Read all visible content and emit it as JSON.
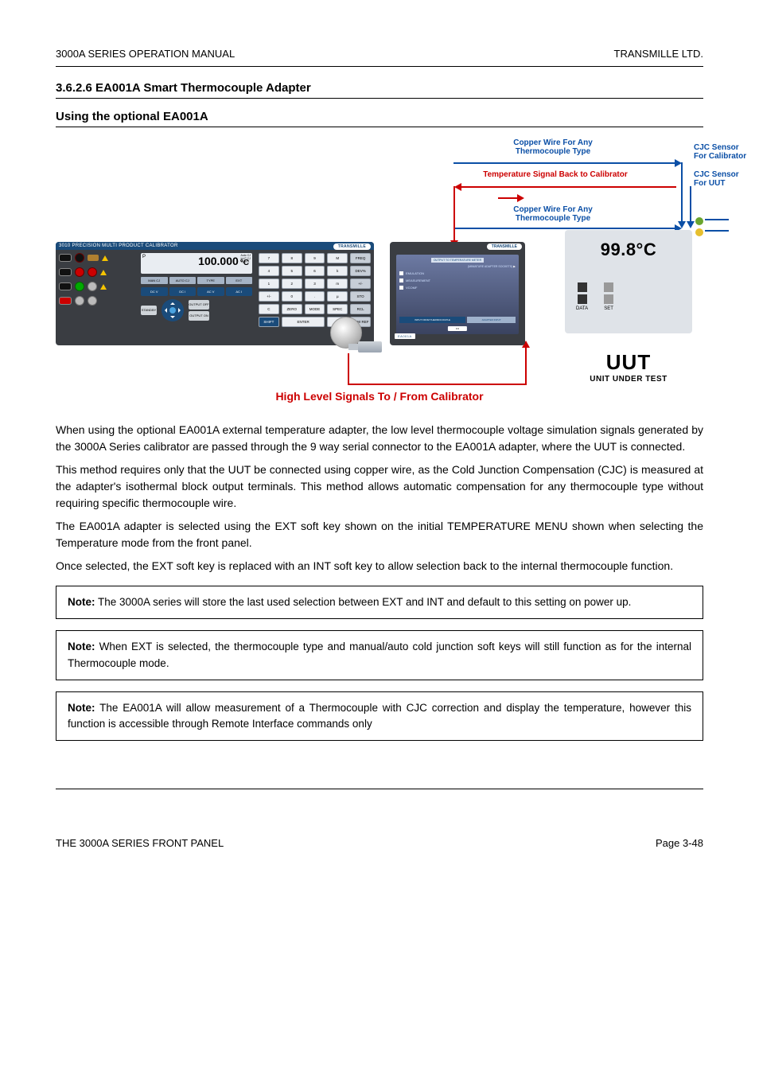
{
  "header": {
    "left": "3000A SERIES OPERATION MANUAL",
    "right": "TRANSMILLE LTD."
  },
  "section": {
    "number": "3.6.2.6",
    "title": "EA001A Smart Thermocouple Adapter",
    "subtitle": "Using the optional EA001A"
  },
  "figure": {
    "calibrator": {
      "model_bar": "3010 PRECISION MULTI PRODUCT CALIBRATOR",
      "brand_oval": "TRANSMILLE",
      "lcd_value": "100.000",
      "lcd_unit": "°C",
      "lcd_sub_lines": [
        "Auto CJ",
        "Int P CJ",
        "Type K"
      ],
      "lcd_sidechar": "P",
      "softkeys": [
        "MAN CJ",
        "AUTO CJ",
        "TYPE",
        "EXT"
      ],
      "hardkeys": [
        "DC V",
        "DC I",
        "AC V",
        "AC I"
      ],
      "left_btn": "STANDBY",
      "dpad_left_label": "OUTPUT OFF",
      "dpad_right_label": "OUTPUT ON",
      "keypad": [
        [
          "7",
          "8",
          "9",
          "M",
          "FREQ"
        ],
        [
          "4",
          "5",
          "6",
          "k",
          "DEV%"
        ],
        [
          "1",
          "2",
          "3",
          "m",
          "+/-"
        ],
        [
          "+/-",
          "0",
          ".",
          "µ",
          "STO"
        ],
        [
          "C",
          "ZERO",
          "MODE",
          "SPEC",
          "RCL"
        ],
        [
          "SHIFT",
          "ENTER",
          "",
          "Hz",
          "NEW REF"
        ]
      ],
      "keypad_blue_last_row_first": "SHIFT"
    },
    "pod": {
      "brand_oval": "TRANSMILLE",
      "title": "OUTPUT TO TEMPERATURE METER",
      "desc_label": "(MINIATURE ADAPTER SOCKETS)",
      "options": [
        "EMULATION",
        "MEASUREMENT",
        "VCOMF"
      ],
      "footer_badge": "EA001A",
      "bottom_strip_left": "INPUT FROM THERMOCOUPLE",
      "bottom_strip_right": "ADAPTER INPUT",
      "foot_btn": "0   0"
    },
    "uut": {
      "display": "99.8°C",
      "btn_labels": [
        "DATA",
        "SET"
      ]
    },
    "annotations": {
      "copper_top": "Copper Wire For Any\nThermocouple Type",
      "copper_bottom": "Copper Wire For Any\nThermocouple Type",
      "temp_signal": "Temperature Signal Back to Calibrator",
      "cjc_cal": "CJC Sensor\nFor Calibrator",
      "cjc_uut": "CJC Sensor\nFor UUT",
      "colors": {
        "blue": "#0b4fa6",
        "red": "#c00000"
      },
      "cjc_led_colors": {
        "green": "#6aa52e",
        "yellow": "#e6bf2e"
      }
    },
    "uut_label": {
      "big": "UUT",
      "small": "UNIT UNDER TEST"
    },
    "caption": "High Level Signals To / From Calibrator"
  },
  "paragraphs": {
    "intro": "When using the optional EA001A external temperature adapter, the low level thermocouple voltage simulation signals generated by the 3000A Series calibrator are passed through the 9 way serial connector to the EA001A adapter, where the UUT is connected.",
    "p2": "This method requires only that the UUT be connected using copper wire, as the Cold Junction Compensation (CJC) is measured at the adapter's isothermal block output terminals. This method allows automatic compensation for any thermocouple type without requiring specific thermocouple wire.",
    "p3": "The EA001A adapter is selected using the EXT soft key shown on the initial TEMPERATURE MENU shown when selecting the Temperature mode from the front panel.",
    "p4": "Once selected, the EXT soft key is replaced with an INT soft key to allow selection back to the internal thermocouple function.",
    "box1_label": "Note:",
    "box1_text": " The 3000A series will store the last used selection between EXT and INT and default to this setting on power up.",
    "box2_label": "Note:",
    "box2_text": " When EXT is selected, the thermocouple type and manual/auto cold junction soft keys will still function as for the internal Thermocouple mode.",
    "box3_label": "Note:",
    "box3_text": " The EA001A will allow measurement of a Thermocouple with CJC correction and display the temperature, however this function is accessible through Remote Interface commands only"
  },
  "footer": {
    "left": "THE 3000A SERIES FRONT PANEL",
    "right": "Page 3-48"
  }
}
